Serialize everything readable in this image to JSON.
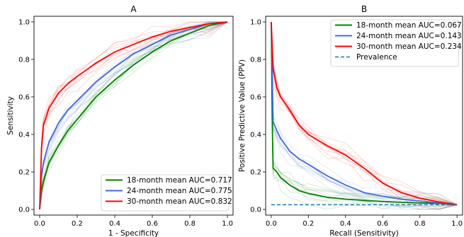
{
  "chart_data": [
    {
      "type": "line",
      "title": "A",
      "xlabel": "1 - Specificity",
      "ylabel": "Sensitivity",
      "xlim": [
        -0.03,
        1.03
      ],
      "ylim": [
        -0.03,
        1.03
      ],
      "xticks": [
        0.0,
        0.2,
        0.4,
        0.6,
        0.8,
        1.0
      ],
      "yticks": [
        0.0,
        0.2,
        0.4,
        0.6,
        0.8,
        1.0
      ],
      "tick_labels": [
        "0.0",
        "0.2",
        "0.4",
        "0.6",
        "0.8",
        "1.0"
      ],
      "legend_placement": "lower-right",
      "series": [
        {
          "name": "18-month mean AUC=0.717",
          "color": "#008000",
          "x": [
            0.0,
            0.01,
            0.02,
            0.05,
            0.1,
            0.15,
            0.2,
            0.3,
            0.4,
            0.5,
            0.6,
            0.7,
            0.8,
            0.9,
            1.0
          ],
          "y": [
            0.0,
            0.1,
            0.15,
            0.25,
            0.34,
            0.42,
            0.48,
            0.6,
            0.69,
            0.77,
            0.84,
            0.9,
            0.94,
            0.98,
            1.0
          ]
        },
        {
          "name": "24-month mean AUC=0.775",
          "color": "#4169e1",
          "x": [
            0.0,
            0.01,
            0.02,
            0.05,
            0.1,
            0.15,
            0.2,
            0.3,
            0.4,
            0.5,
            0.6,
            0.7,
            0.8,
            0.9,
            1.0
          ],
          "y": [
            0.0,
            0.18,
            0.25,
            0.36,
            0.46,
            0.53,
            0.58,
            0.68,
            0.76,
            0.83,
            0.88,
            0.93,
            0.96,
            0.99,
            1.0
          ]
        },
        {
          "name": "30-month mean AUC=0.832",
          "color": "#ff0000",
          "x": [
            0.0,
            0.01,
            0.02,
            0.05,
            0.1,
            0.15,
            0.2,
            0.3,
            0.4,
            0.5,
            0.6,
            0.7,
            0.8,
            0.9,
            1.0
          ],
          "y": [
            0.0,
            0.33,
            0.45,
            0.54,
            0.62,
            0.67,
            0.71,
            0.78,
            0.84,
            0.88,
            0.92,
            0.95,
            0.97,
            0.99,
            1.0
          ]
        }
      ]
    },
    {
      "type": "line",
      "title": "B",
      "xlabel": "Recall (Sensitivity)",
      "ylabel": "Positive Predictive Value (PPV)",
      "xlim": [
        -0.03,
        1.03
      ],
      "ylim": [
        -0.03,
        1.03
      ],
      "xticks": [
        0.0,
        0.2,
        0.4,
        0.6,
        0.8,
        1.0
      ],
      "yticks": [
        0.0,
        0.2,
        0.4,
        0.6,
        0.8,
        1.0
      ],
      "tick_labels": [
        "0.0",
        "0.2",
        "0.4",
        "0.6",
        "0.8",
        "1.0"
      ],
      "legend_placement": "upper-right",
      "series": [
        {
          "name": "18-month mean AUC=0.067",
          "color": "#008000",
          "x": [
            0.0,
            0.005,
            0.01,
            0.03,
            0.05,
            0.1,
            0.15,
            0.2,
            0.3,
            0.4,
            0.5,
            0.6,
            0.7,
            0.8,
            0.9,
            1.0
          ],
          "y": [
            1.0,
            0.5,
            0.22,
            0.2,
            0.17,
            0.13,
            0.1,
            0.085,
            0.065,
            0.055,
            0.048,
            0.042,
            0.038,
            0.035,
            0.032,
            0.025
          ]
        },
        {
          "name": "24-month mean AUC=0.143",
          "color": "#4169e1",
          "x": [
            0.0,
            0.005,
            0.01,
            0.03,
            0.05,
            0.1,
            0.15,
            0.2,
            0.3,
            0.4,
            0.5,
            0.6,
            0.7,
            0.8,
            0.9,
            1.0
          ],
          "y": [
            1.0,
            0.75,
            0.47,
            0.42,
            0.38,
            0.31,
            0.27,
            0.24,
            0.18,
            0.13,
            0.09,
            0.07,
            0.055,
            0.045,
            0.035,
            0.025
          ]
        },
        {
          "name": "30-month mean AUC=0.234",
          "color": "#ff0000",
          "x": [
            0.0,
            0.005,
            0.01,
            0.03,
            0.05,
            0.1,
            0.15,
            0.2,
            0.3,
            0.4,
            0.5,
            0.55,
            0.6,
            0.7,
            0.8,
            0.9,
            1.0
          ],
          "y": [
            1.0,
            0.88,
            0.75,
            0.65,
            0.6,
            0.53,
            0.45,
            0.4,
            0.34,
            0.29,
            0.22,
            0.18,
            0.14,
            0.09,
            0.06,
            0.04,
            0.025
          ]
        },
        {
          "name": "Prevalence",
          "color": "#1f77b4",
          "dashed": true,
          "x": [
            0.0,
            1.0
          ],
          "y": [
            0.025,
            0.025
          ]
        }
      ]
    }
  ]
}
